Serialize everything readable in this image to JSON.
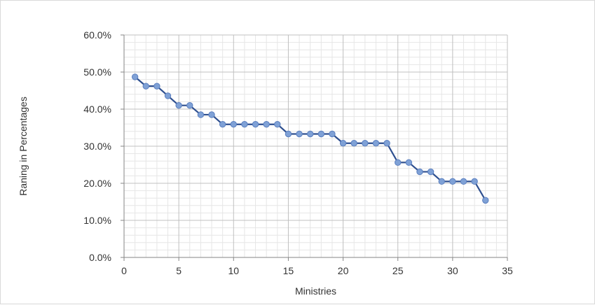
{
  "chart_data": {
    "type": "line",
    "title": "",
    "xlabel": "Ministries",
    "ylabel": "Raning in Percentages",
    "xlim": [
      0,
      35
    ],
    "ylim": [
      0,
      60
    ],
    "x_ticks": [
      0,
      5,
      10,
      15,
      20,
      25,
      30,
      35
    ],
    "x_tick_labels": [
      "0",
      "5",
      "10",
      "15",
      "20",
      "25",
      "30",
      "35"
    ],
    "y_ticks": [
      0,
      10,
      20,
      30,
      40,
      50,
      60
    ],
    "y_tick_labels": [
      "0.0%",
      "10.0%",
      "20.0%",
      "30.0%",
      "40.0%",
      "50.0%",
      "60.0%"
    ],
    "grid": true,
    "legend": "none",
    "series": [
      {
        "x": [
          1,
          2,
          3,
          4,
          5,
          6,
          7,
          8,
          9,
          10,
          11,
          12,
          13,
          14,
          15,
          16,
          17,
          18,
          19,
          20,
          21,
          22,
          23,
          24,
          25,
          26,
          27,
          28,
          29,
          30,
          31,
          32,
          33
        ],
        "values": [
          48.7,
          46.2,
          46.2,
          43.6,
          41.0,
          41.0,
          38.5,
          38.5,
          35.9,
          35.9,
          35.9,
          35.9,
          35.9,
          35.9,
          33.3,
          33.3,
          33.3,
          33.3,
          33.3,
          30.8,
          30.8,
          30.8,
          30.8,
          30.8,
          25.6,
          25.6,
          23.1,
          23.1,
          20.5,
          20.5,
          20.5,
          20.5,
          15.4
        ]
      }
    ],
    "colors": {
      "line": "#2e4f8f",
      "marker": "#7fa1d6",
      "marker_edge": "#5b7fbf",
      "major_grid": "#c0c0c0",
      "minor_grid": "#e6e6e6",
      "axis": "#868686"
    }
  }
}
